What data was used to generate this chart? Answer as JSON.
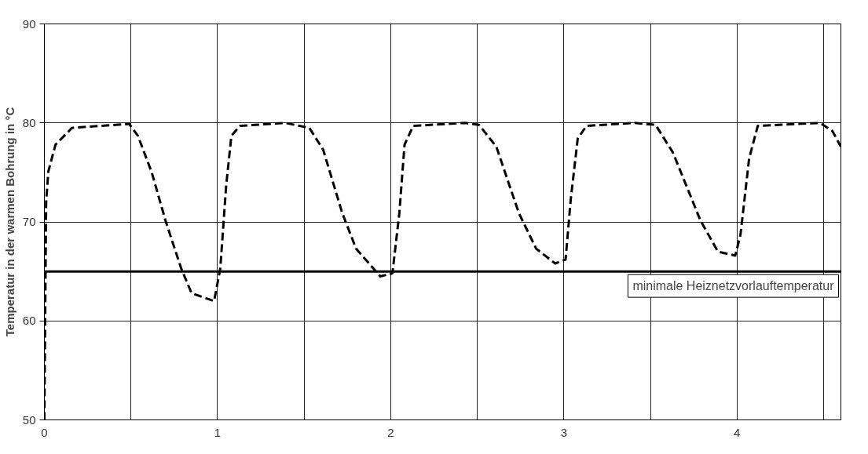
{
  "chart_data": {
    "type": "line",
    "ylabel": "Temperatur in der warmen Bohrung in °C",
    "x": [
      0,
      0.01,
      0.023,
      0.064,
      0.16,
      0.49,
      0.54,
      0.62,
      0.7,
      0.79,
      0.85,
      0.98,
      1.016,
      1.05,
      1.08,
      1.13,
      1.39,
      1.53,
      1.61,
      1.72,
      1.8,
      1.94,
      2.01,
      2.05,
      2.08,
      2.13,
      2.43,
      2.51,
      2.61,
      2.74,
      2.84,
      2.95,
      3.01,
      3.04,
      3.08,
      3.13,
      3.41,
      3.53,
      3.63,
      3.79,
      3.89,
      3.99,
      4.02,
      4.07,
      4.12,
      4.48,
      4.55,
      4.6
    ],
    "series": [
      {
        "color": "#000000",
        "values": [
          50,
          72,
          75.1,
          77.8,
          79.5,
          79.9,
          78.7,
          75,
          70.1,
          65.3,
          62.8,
          62,
          65.3,
          73.7,
          78.7,
          79.7,
          80,
          79.5,
          77.3,
          70.9,
          67.3,
          64.5,
          64.8,
          70.9,
          77.8,
          79.7,
          80,
          79.8,
          77.6,
          70.9,
          67.3,
          65.8,
          66.2,
          72.3,
          78.4,
          79.7,
          80,
          79.8,
          77,
          70.1,
          67,
          66.6,
          68.7,
          76.4,
          79.7,
          80,
          79.2,
          77.6
        ]
      }
    ],
    "line_style": "dashed",
    "marker": "none",
    "xlim": [
      0,
      4.6
    ],
    "ylim": [
      50,
      90
    ],
    "xticks": [
      0,
      {
        "value": 0.5,
        "label": null
      },
      1,
      {
        "value": 1.5,
        "label": null
      },
      2,
      {
        "value": 2.5,
        "label": null
      },
      3,
      {
        "value": 3.5,
        "label": null
      },
      4,
      {
        "value": 4.5,
        "label": null
      }
    ],
    "yticks": [
      50,
      60,
      70,
      80,
      90
    ],
    "grid": true,
    "ref_lines": [
      {
        "axis": "y",
        "value": 65,
        "label": "minimale Heiznetzvorlauftemperatur",
        "color": "#000000",
        "line_style": "solid"
      }
    ]
  }
}
